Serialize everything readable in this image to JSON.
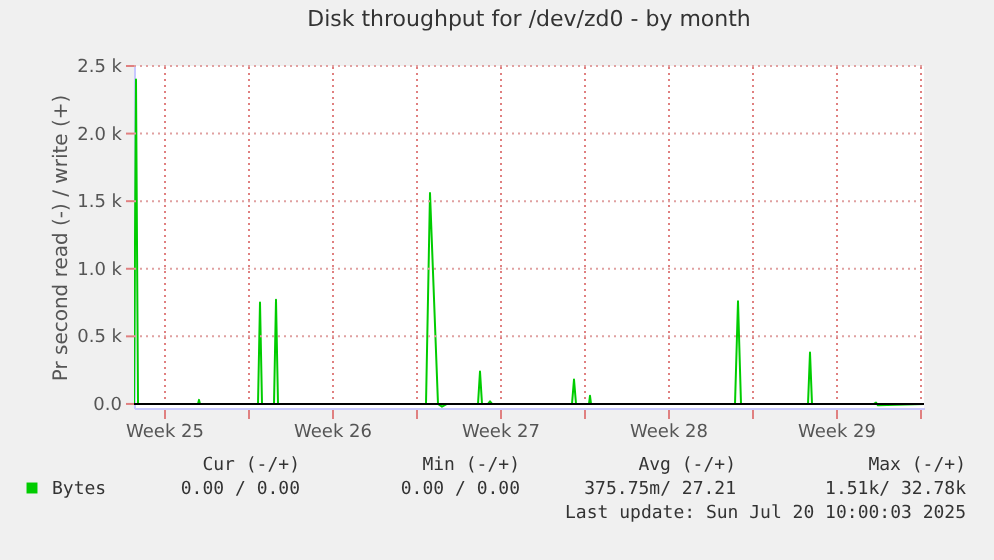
{
  "chart_data": {
    "type": "line",
    "title": "Disk throughput for /dev/zd0 - by month",
    "ylabel": "Pr second read (-) / write (+)",
    "x": [
      "2025-06-17T06:00",
      "2025-06-17T08:00",
      "2025-06-17T10:00",
      "2025-06-19T22:00",
      "2025-06-19T23:00",
      "2025-06-20T00:00",
      "2025-06-22T10:00",
      "2025-06-22T12:00",
      "2025-06-22T14:00",
      "2025-06-23T02:00",
      "2025-06-23T04:00",
      "2025-06-23T06:00",
      "2025-06-29T10:00",
      "2025-06-29T14:00",
      "2025-06-29T22:00",
      "2025-06-30T02:00",
      "2025-06-30T07:00",
      "2025-07-01T14:00",
      "2025-07-01T16:00",
      "2025-07-01T18:00",
      "2025-07-02T00:00",
      "2025-07-02T02:00",
      "2025-07-02T04:00",
      "2025-07-05T12:00",
      "2025-07-05T14:00",
      "2025-07-05T16:00",
      "2025-07-06T05:00",
      "2025-07-06T06:00",
      "2025-07-06T07:00",
      "2025-07-12T07:00",
      "2025-07-12T10:00",
      "2025-07-12T13:00",
      "2025-07-15T08:00",
      "2025-07-15T10:00",
      "2025-07-15T12:00",
      "2025-07-18T02:00",
      "2025-07-18T04:00",
      "2025-07-18T06:00",
      "2025-07-20T04:00"
    ],
    "series": [
      {
        "name": "Bytes",
        "color": "#00cc00",
        "values": [
          0,
          2400,
          0,
          0,
          30,
          0,
          0,
          750,
          0,
          0,
          770,
          0,
          0,
          1560,
          0,
          -20,
          0,
          0,
          240,
          0,
          0,
          20,
          0,
          0,
          180,
          0,
          0,
          60,
          0,
          0,
          760,
          0,
          0,
          380,
          0,
          0,
          10,
          -10,
          0
        ]
      }
    ],
    "xlim": [
      "2025-06-17T06:00",
      "2025-07-20T04:00"
    ],
    "xticks": [
      {
        "value": "2025-06-18T12:00",
        "label": "Week 25"
      },
      {
        "value": "2025-06-22T00:00",
        "label": null
      },
      {
        "value": "2025-06-25T12:00",
        "label": "Week 26"
      },
      {
        "value": "2025-06-29T00:00",
        "label": null
      },
      {
        "value": "2025-07-02T12:00",
        "label": "Week 27"
      },
      {
        "value": "2025-07-06T00:00",
        "label": null
      },
      {
        "value": "2025-07-09T12:00",
        "label": "Week 28"
      },
      {
        "value": "2025-07-13T00:00",
        "label": null
      },
      {
        "value": "2025-07-16T12:00",
        "label": "Week 29"
      },
      {
        "value": "2025-07-20T00:00",
        "label": null
      }
    ],
    "ylim": [
      -30,
      2500
    ],
    "yticks": [
      {
        "value": 0,
        "label": "0.0"
      },
      {
        "value": 500,
        "label": "0.5 k"
      },
      {
        "value": 1000,
        "label": "1.0 k"
      },
      {
        "value": 1500,
        "label": "1.5 k"
      },
      {
        "value": 2000,
        "label": "2.0 k"
      },
      {
        "value": 2500,
        "label": "2.5 k"
      }
    ],
    "ref_lines": [
      {
        "axis": "y",
        "value": 0,
        "color": "#000000"
      }
    ],
    "grid": true,
    "legend": "bottom",
    "annotations": [
      "Cur (-/+)",
      "Min (-/+)",
      "Avg (-/+)",
      "Max (-/+)",
      "0.00 /  0.00",
      "0.00 /  0.00",
      "375.75m/ 27.21",
      "1.51k/ 32.78k",
      "Last update: Sun Jul 20 10:00:03 2025"
    ]
  }
}
